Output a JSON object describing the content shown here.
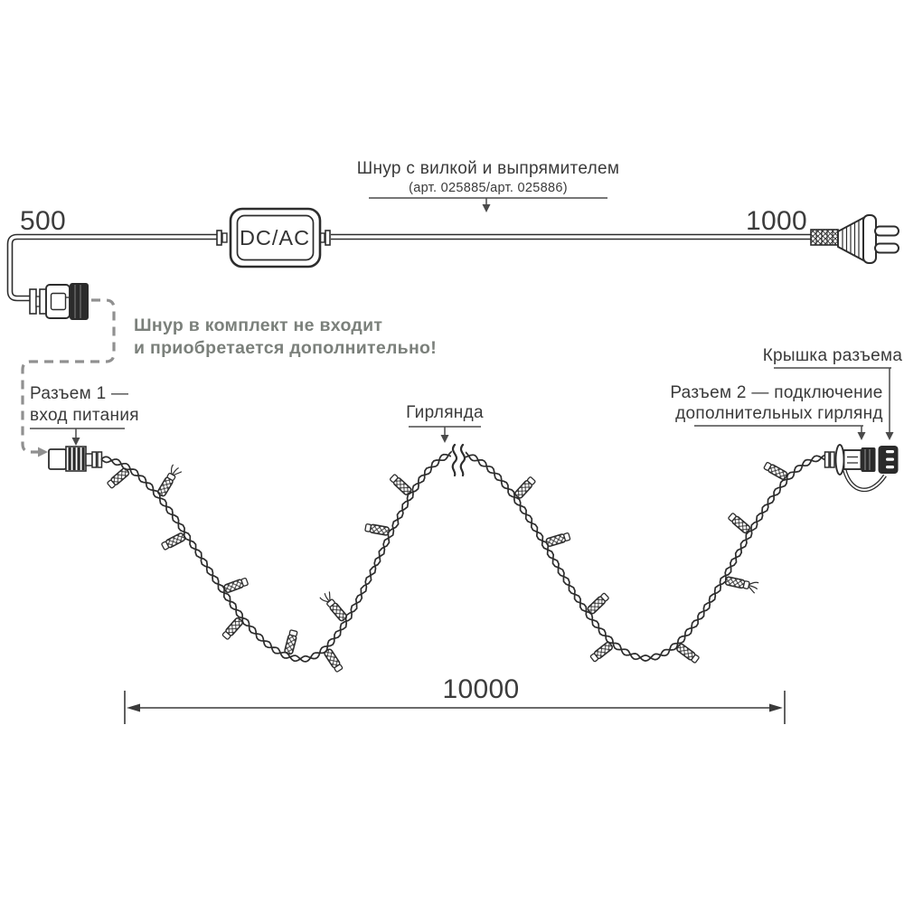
{
  "diagram": {
    "cord_label": {
      "title": "Шнур с вилкой и выпрямителем",
      "articles": "(арт. 025885/арт. 025886)"
    },
    "converter_label": "DC/AC",
    "dimensions": {
      "cord_to_connector": "500",
      "cord_to_plug": "1000",
      "garland_length": "10000"
    },
    "note": {
      "line1": "Шнур в комплект не входит",
      "line2": "и приобретается дополнительно!"
    },
    "connector1": {
      "line1": "Разъем 1 —",
      "line2": "вход питания"
    },
    "garland_label": "Гирлянда",
    "connector2": {
      "line1": "Разъем 2 — подключение",
      "line2": "дополнительных гирлянд"
    },
    "cap_label": "Крышка разъема",
    "colors": {
      "line": "#2d2d2d",
      "leader_line": "#4a4a4a",
      "dashed_note": "#909090",
      "note_text": "#7b807b",
      "background": "#ffffff"
    }
  }
}
